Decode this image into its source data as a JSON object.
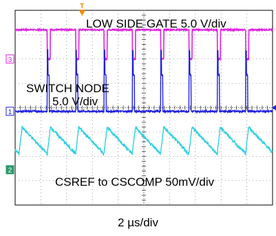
{
  "chart_data": {
    "type": "line",
    "xlabel": "2 µs/div",
    "annotations": {
      "ch3": "LOW SIDE GATE 5.0 V/div",
      "ch1_line1": "SWITCH NODE",
      "ch1_line2": "5.0 V/div",
      "ch2": "CSREF to CSCOMP 50mV/div"
    },
    "grid": true,
    "divisions": {
      "x": 10,
      "y": 8
    },
    "xlim_div": [
      0,
      10
    ],
    "ylim_div": [
      -4,
      4
    ],
    "pulse_period_div": 1.1,
    "pulse_times_div": [
      1.25,
      2.35,
      3.45,
      4.55,
      5.65,
      6.75,
      7.85,
      8.95
    ],
    "pulse_width_div": 0.12,
    "series": [
      {
        "channel": "3",
        "color": "#e020e0",
        "high_div": 3.2,
        "low_div": 2.0
      },
      {
        "channel": "1",
        "color": "#2020e0",
        "base_div": -0.15,
        "pulse_div": 2.35
      },
      {
        "channel": "2",
        "color": "#30d0e0",
        "peak_div": -0.8,
        "trough_div": -1.9
      }
    ],
    "marker_labels": {
      "trigger": "T",
      "ch3": "3",
      "ch1": "1",
      "ch2": "2"
    }
  }
}
